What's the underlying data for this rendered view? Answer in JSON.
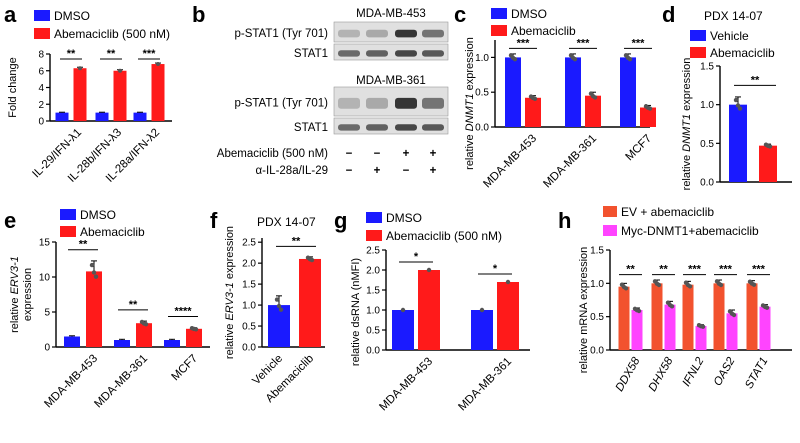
{
  "colors": {
    "blue": "#1a1aff",
    "red": "#ff1a1a",
    "orange": "#f2522e",
    "magenta": "#ff44ff",
    "grey_blot": "#2b2b2b"
  },
  "chart_data": [
    {
      "panel": "a",
      "type": "bar",
      "ylabel": "Fold change",
      "ylim": [
        0,
        8
      ],
      "yticks": [
        0,
        2,
        4,
        6,
        8
      ],
      "categories": [
        "IL-29/IFN-λ1",
        "IL-28b/IFN-λ3",
        "IL-28a/IFN-λ2"
      ],
      "series": [
        {
          "name": "DMSO",
          "values": [
            1,
            1,
            1
          ],
          "errors": [
            0.05,
            0.05,
            0.05
          ]
        },
        {
          "name": "Abemaciclib (500 nM)",
          "values": [
            6.3,
            6.0,
            6.8
          ],
          "errors": [
            0.12,
            0.12,
            0.12
          ]
        }
      ],
      "significance": [
        "**",
        "**",
        "***"
      ]
    },
    {
      "panel": "b",
      "type": "western-blot",
      "cell_lines": [
        "MDA-MB-453",
        "MDA-MB-361"
      ],
      "row_labels": [
        "p-STAT1 (Tyr 701)",
        "STAT1"
      ],
      "condition_labels": [
        "Abemaciclib (500 nM)",
        "α-IL-28a/IL-29"
      ],
      "lanes": [
        {
          "abemaciclib": "−",
          "antibody": "−"
        },
        {
          "abemaciclib": "−",
          "antibody": "+"
        },
        {
          "abemaciclib": "+",
          "antibody": "−"
        },
        {
          "abemaciclib": "+",
          "antibody": "+"
        }
      ]
    },
    {
      "panel": "c",
      "type": "bar",
      "ylabel_parts": [
        "relative ",
        "DNMT1",
        " expression"
      ],
      "ylim": [
        0,
        1.25
      ],
      "yticks": [
        0,
        0.5,
        1.0
      ],
      "categories": [
        "MDA-MB-453",
        "MDA-MB-361",
        "MCF7"
      ],
      "series": [
        {
          "name": "DMSO",
          "values": [
            1.0,
            1.0,
            1.0
          ],
          "errors": [
            0.05,
            0.05,
            0.05
          ]
        },
        {
          "name": "Abemaciclib",
          "values": [
            0.42,
            0.45,
            0.28
          ],
          "errors": [
            0.03,
            0.05,
            0.03
          ]
        }
      ],
      "significance": [
        "***",
        "***",
        "***"
      ]
    },
    {
      "panel": "d",
      "type": "bar",
      "title": "PDX 14-07",
      "ylabel_parts": [
        "relative ",
        "DNMT1",
        " expression"
      ],
      "ylim": [
        0,
        1.5
      ],
      "yticks": [
        0,
        0.5,
        1.0,
        1.5
      ],
      "categories": [
        "Vehicle",
        "Abemaciclib"
      ],
      "values": [
        1.0,
        0.47
      ],
      "errors": [
        0.1,
        0.02
      ],
      "significance": [
        "**"
      ]
    },
    {
      "panel": "e",
      "type": "bar",
      "ylabel_parts": [
        "relative ",
        "ERV3-1"
      ],
      "ylabel2": "expression",
      "ylim": [
        0,
        15
      ],
      "yticks": [
        0,
        5,
        10,
        15
      ],
      "categories": [
        "MDA-MB-453",
        "MDA-MB-361",
        "MCF7"
      ],
      "series": [
        {
          "name": "DMSO",
          "values": [
            1.5,
            1.0,
            1.0
          ],
          "errors": [
            0.1,
            0.1,
            0.1
          ]
        },
        {
          "name": "Abemaciclib",
          "values": [
            10.8,
            3.4,
            2.6
          ],
          "errors": [
            1.5,
            0.3,
            0.15
          ]
        }
      ],
      "significance": [
        "**",
        "**",
        "****"
      ]
    },
    {
      "panel": "f",
      "type": "bar",
      "title": "PDX 14-07",
      "ylabel_parts": [
        "relative ",
        "ERV3-1",
        " expression"
      ],
      "ylim": [
        0,
        2.6
      ],
      "yticks": [
        0,
        0.5,
        1.0,
        1.5,
        2.0,
        2.5
      ],
      "categories": [
        "Vehicle",
        "Abemaciclib"
      ],
      "values": [
        1.0,
        2.1
      ],
      "errors": [
        0.22,
        0.05
      ],
      "significance": [
        "**"
      ]
    },
    {
      "panel": "g",
      "type": "bar",
      "ylabel": "relative dsRNA (nMFI)",
      "ylim": [
        0,
        2.5
      ],
      "yticks": [
        0,
        0.5,
        1.0,
        1.5,
        2.0,
        2.5
      ],
      "categories": [
        "MDA-MB-453",
        "MDA-MB-361"
      ],
      "series": [
        {
          "name": "DMSO",
          "values": [
            1.0,
            1.0
          ]
        },
        {
          "name": "Abemaciclib (500 nM)",
          "values": [
            2.0,
            1.7
          ]
        }
      ],
      "significance": [
        "*",
        "*"
      ]
    },
    {
      "panel": "h",
      "type": "bar",
      "ylabel": "relative mRNA expression",
      "ylim": [
        0,
        1.5
      ],
      "yticks": [
        0,
        0.5,
        1.0,
        1.5
      ],
      "categories": [
        "DDX58",
        "DHX58",
        "IFNL2",
        "OAS2",
        "STAT1"
      ],
      "series": [
        {
          "name": "EV + abemaciclib",
          "values": [
            0.95,
            1.0,
            0.98,
            1.0,
            1.0
          ],
          "errors": [
            0.05,
            0.05,
            0.05,
            0.05,
            0.04
          ]
        },
        {
          "name": "Myc-DNMT1+abemaciclib",
          "values": [
            0.6,
            0.68,
            0.36,
            0.55,
            0.65
          ],
          "errors": [
            0.03,
            0.05,
            0.02,
            0.05,
            0.03
          ]
        }
      ],
      "significance": [
        "**",
        "**",
        "***",
        "***",
        "***"
      ]
    }
  ]
}
